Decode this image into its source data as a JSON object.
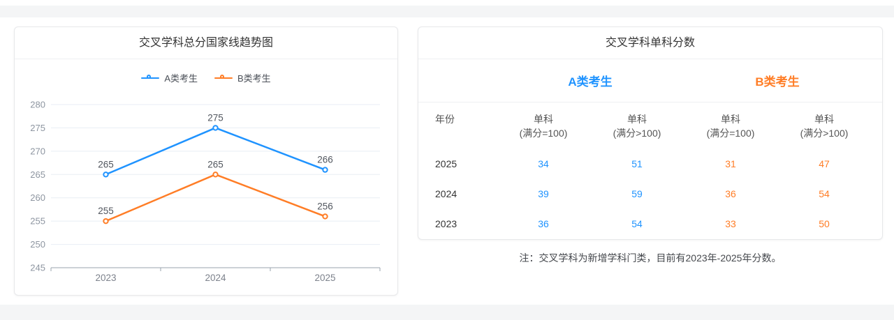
{
  "page": {
    "background": "#ffffff",
    "band_color": "#f4f5f6"
  },
  "colors": {
    "blue": "#1f93ff",
    "orange": "#ff7d26",
    "grid_line": "#e8eef4",
    "axis_line": "#9aa3ad",
    "tick_text": "#8d95a0",
    "value_text": "#51565e",
    "card_border": "#e7e8ea",
    "divider": "#eef0f2"
  },
  "left_panel": {
    "title": "交叉学科总分国家线趋势图"
  },
  "chart_data": {
    "type": "line",
    "title": "交叉学科总分国家线趋势图",
    "x": [
      "2023",
      "2024",
      "2025"
    ],
    "series": [
      {
        "name": "A类考生",
        "color": "#1f93ff",
        "values": [
          265,
          275,
          266
        ]
      },
      {
        "name": "B类考生",
        "color": "#ff7d26",
        "values": [
          255,
          265,
          256
        ]
      }
    ],
    "ylim": [
      245,
      280
    ],
    "y_ticks": [
      245,
      250,
      255,
      260,
      265,
      270,
      275,
      280
    ],
    "grid": true,
    "legend_position": "top",
    "point_labels": true
  },
  "right_panel": {
    "title": "交叉学科单科分数",
    "groups": [
      {
        "label": "A类考生",
        "color": "#1f93ff"
      },
      {
        "label": "B类考生",
        "color": "#ff7d26"
      }
    ],
    "columns": [
      {
        "line1": "年份",
        "line2": ""
      },
      {
        "line1": "单科",
        "line2": "(满分=100)"
      },
      {
        "line1": "单科",
        "line2": "(满分>100)"
      },
      {
        "line1": "单科",
        "line2": "(满分=100)"
      },
      {
        "line1": "单科",
        "line2": "(满分>100)"
      }
    ],
    "rows": [
      {
        "year": "2025",
        "values": [
          "34",
          "51",
          "31",
          "47"
        ]
      },
      {
        "year": "2024",
        "values": [
          "39",
          "59",
          "36",
          "54"
        ]
      },
      {
        "year": "2023",
        "values": [
          "36",
          "54",
          "33",
          "50"
        ]
      }
    ],
    "note": "注：交叉学科为新增学科门类，目前有2023年-2025年分数。"
  }
}
